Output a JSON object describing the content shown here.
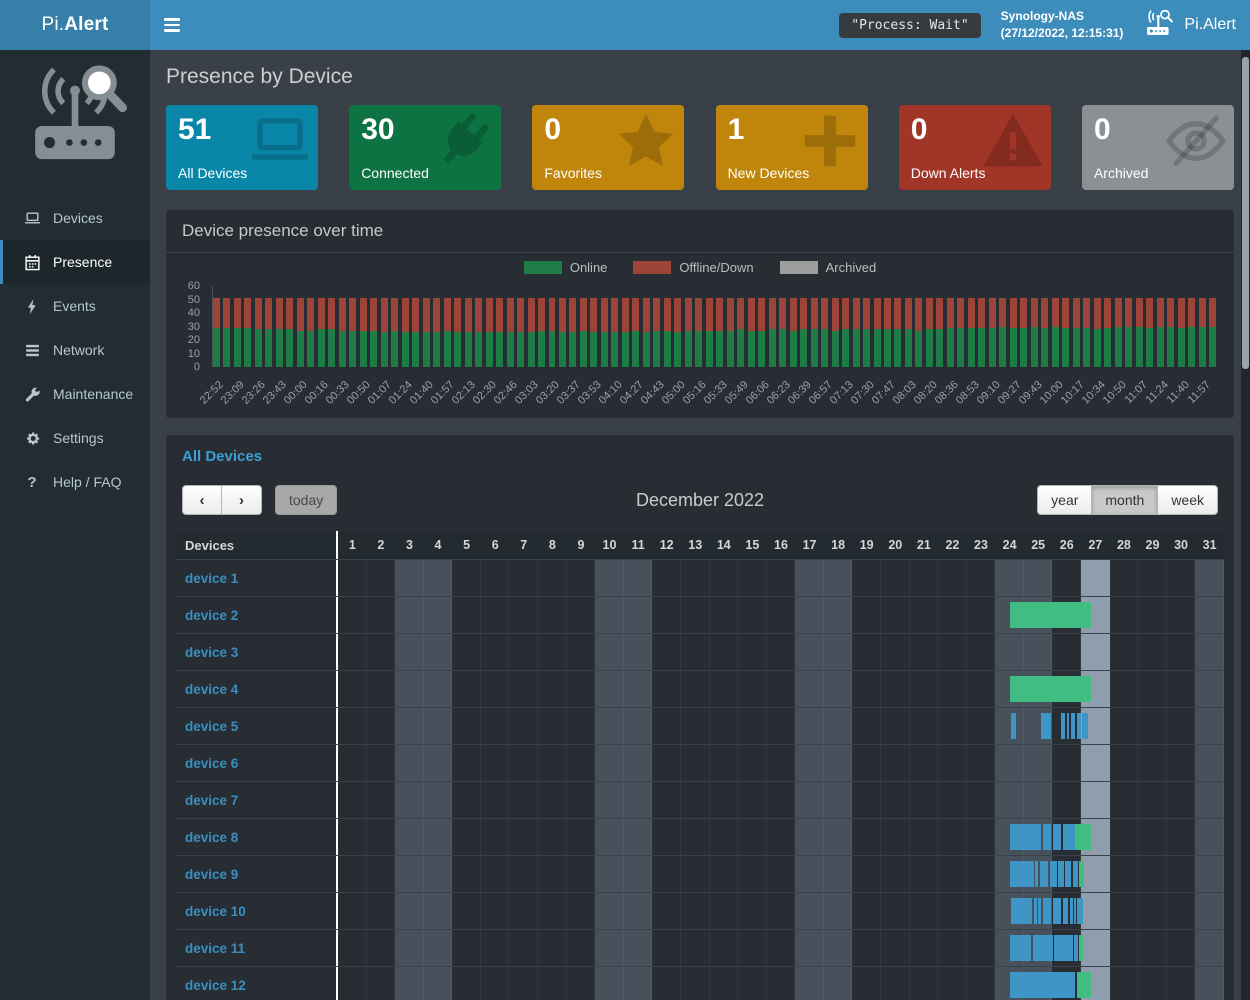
{
  "topbar": {
    "logo_prefix": "Pi.",
    "logo_bold": "Alert",
    "process_badge": "\"Process: Wait\"",
    "host_name": "Synology-NAS",
    "host_time": "(27/12/2022, 12:15:31)",
    "brand_right": "Pi.Alert"
  },
  "sidebar": {
    "items": [
      {
        "id": "devices",
        "label": "Devices",
        "icon": "laptop-icon",
        "active": false
      },
      {
        "id": "presence",
        "label": "Presence",
        "icon": "calendar-icon",
        "active": true
      },
      {
        "id": "events",
        "label": "Events",
        "icon": "bolt-icon",
        "active": false
      },
      {
        "id": "network",
        "label": "Network",
        "icon": "network-icon",
        "active": false
      },
      {
        "id": "maintenance",
        "label": "Maintenance",
        "icon": "wrench-icon",
        "active": false
      },
      {
        "id": "settings",
        "label": "Settings",
        "icon": "gear-icon",
        "active": false
      },
      {
        "id": "help",
        "label": "Help / FAQ",
        "icon": "question-icon",
        "active": false
      }
    ]
  },
  "page": {
    "title": "Presence by Device"
  },
  "stats": [
    {
      "value": "51",
      "label": "All Devices",
      "color": "#0a87a8",
      "icon": "laptop-icon"
    },
    {
      "value": "30",
      "label": "Connected",
      "color": "#0d7342",
      "icon": "plug-icon"
    },
    {
      "value": "0",
      "label": "Favorites",
      "color": "#c0860b",
      "icon": "star-icon"
    },
    {
      "value": "1",
      "label": "New Devices",
      "color": "#c0860b",
      "icon": "plus-icon"
    },
    {
      "value": "0",
      "label": "Down Alerts",
      "color": "#a13527",
      "icon": "warning-icon"
    },
    {
      "value": "0",
      "label": "Archived",
      "color": "#8d9093",
      "icon": "eye-slash-icon"
    }
  ],
  "chart_panel": {
    "title": "Device presence over time"
  },
  "chart_data": {
    "type": "bar",
    "stacked": true,
    "title": "Device presence over time",
    "xlabel": "",
    "ylabel": "",
    "ylim": [
      0,
      60
    ],
    "yticks": [
      60,
      50,
      40,
      30,
      20,
      10,
      0
    ],
    "grid": false,
    "legend_position": "top-center",
    "bars_per_label": 2,
    "x": [
      "22:52",
      "23:09",
      "23:26",
      "23:43",
      "00:00",
      "00:16",
      "00:33",
      "00:50",
      "01:07",
      "01:24",
      "01:40",
      "01:57",
      "02:13",
      "02:30",
      "02:46",
      "03:03",
      "03:20",
      "03:37",
      "03:53",
      "04:10",
      "04:27",
      "04:43",
      "05:00",
      "05:16",
      "05:33",
      "05:49",
      "06:06",
      "06:23",
      "06:39",
      "06:57",
      "07:13",
      "07:30",
      "07:47",
      "08:03",
      "08:20",
      "08:36",
      "08:53",
      "09:10",
      "09:27",
      "09:43",
      "10:00",
      "10:17",
      "10:34",
      "10:50",
      "11:07",
      "11:24",
      "11:40",
      "11:57"
    ],
    "series": [
      {
        "name": "Online",
        "color": "#1e7d46",
        "values": [
          29,
          29,
          29,
          29,
          28,
          28,
          28,
          28,
          27,
          27,
          28,
          28,
          27,
          27,
          27,
          27,
          26,
          27,
          26,
          26,
          26,
          26,
          27,
          26,
          26,
          26,
          26,
          26,
          26,
          26,
          26,
          27,
          27,
          26,
          26,
          27,
          26,
          26,
          26,
          26,
          27,
          26,
          27,
          27,
          26,
          27,
          27,
          27,
          27,
          27,
          28,
          27,
          27,
          28,
          28,
          27,
          28,
          28,
          28,
          27,
          28,
          28,
          28,
          28,
          28,
          28,
          28,
          27,
          28,
          28,
          29,
          29,
          29,
          29,
          29,
          30,
          29,
          29,
          30,
          29,
          30,
          29,
          29,
          29,
          28,
          29,
          30,
          30,
          30,
          29,
          30,
          30,
          29,
          30,
          30,
          30
        ]
      },
      {
        "name": "Offline/Down",
        "color": "#9d4439",
        "values": [
          22,
          22,
          22,
          22,
          23,
          23,
          23,
          23,
          24,
          24,
          23,
          23,
          24,
          24,
          24,
          24,
          25,
          24,
          25,
          25,
          25,
          25,
          24,
          25,
          25,
          25,
          25,
          25,
          25,
          25,
          25,
          24,
          24,
          25,
          25,
          24,
          25,
          25,
          25,
          25,
          24,
          25,
          24,
          24,
          25,
          24,
          24,
          24,
          24,
          24,
          23,
          24,
          24,
          23,
          23,
          24,
          23,
          23,
          23,
          24,
          23,
          23,
          23,
          23,
          23,
          23,
          23,
          24,
          23,
          23,
          22,
          22,
          22,
          22,
          22,
          21,
          22,
          22,
          21,
          22,
          21,
          22,
          22,
          22,
          23,
          22,
          21,
          21,
          21,
          22,
          21,
          21,
          22,
          21,
          21,
          21
        ]
      },
      {
        "name": "Archived",
        "color": "#9e9e9e",
        "values_constant": 0
      }
    ]
  },
  "calendar": {
    "panel_title": "All Devices",
    "toolbar": {
      "prev": "‹",
      "next": "›",
      "today_label": "today",
      "title": "December 2022",
      "views": [
        "year",
        "month",
        "week"
      ],
      "active_view": "month"
    },
    "table": {
      "devices_header": "Devices",
      "days": [
        1,
        2,
        3,
        4,
        5,
        6,
        7,
        8,
        9,
        10,
        11,
        12,
        13,
        14,
        15,
        16,
        17,
        18,
        19,
        20,
        21,
        22,
        23,
        24,
        25,
        26,
        27,
        28,
        29,
        30,
        31
      ],
      "weekend_days": [
        3,
        4,
        10,
        11,
        17,
        18,
        24,
        25,
        31
      ],
      "today_day": 27
    },
    "bar_colors": {
      "presence": "#41bd84",
      "session": "#3e95c6"
    },
    "devices": [
      {
        "name": "device 1",
        "bars": []
      },
      {
        "name": "device 2",
        "bars": [
          {
            "s": 24.5,
            "e": 27.35,
            "t": "online"
          }
        ]
      },
      {
        "name": "device 3",
        "bars": []
      },
      {
        "name": "device 4",
        "bars": [
          {
            "s": 24.5,
            "e": 27.35,
            "t": "online"
          }
        ]
      },
      {
        "name": "device 5",
        "bars": [
          {
            "s": 24.55,
            "e": 24.72,
            "t": "session"
          },
          {
            "s": 25.6,
            "e": 25.95,
            "t": "session"
          },
          {
            "s": 26.3,
            "e": 26.45,
            "t": "session"
          },
          {
            "s": 26.5,
            "e": 26.58,
            "t": "session"
          },
          {
            "s": 26.63,
            "e": 26.8,
            "t": "session"
          },
          {
            "s": 26.85,
            "e": 27.0,
            "t": "session"
          },
          {
            "s": 27.02,
            "e": 27.12,
            "t": "session"
          },
          {
            "s": 27.15,
            "e": 27.25,
            "t": "session"
          }
        ]
      },
      {
        "name": "device 6",
        "bars": []
      },
      {
        "name": "device 7",
        "bars": []
      },
      {
        "name": "device 8",
        "bars": [
          {
            "s": 24.5,
            "e": 25.6,
            "t": "session"
          },
          {
            "s": 25.65,
            "e": 25.95,
            "t": "session"
          },
          {
            "s": 26.0,
            "e": 26.3,
            "t": "session"
          },
          {
            "s": 26.35,
            "e": 26.6,
            "t": "session"
          },
          {
            "s": 26.62,
            "e": 26.78,
            "t": "session"
          },
          {
            "s": 26.8,
            "e": 27.33,
            "t": "online"
          }
        ]
      },
      {
        "name": "device 9",
        "bars": [
          {
            "s": 24.5,
            "e": 25.35,
            "t": "session"
          },
          {
            "s": 25.4,
            "e": 25.5,
            "t": "session"
          },
          {
            "s": 25.55,
            "e": 25.85,
            "t": "session"
          },
          {
            "s": 25.9,
            "e": 26.15,
            "t": "session"
          },
          {
            "s": 26.2,
            "e": 26.4,
            "t": "session"
          },
          {
            "s": 26.45,
            "e": 26.65,
            "t": "session"
          },
          {
            "s": 26.7,
            "e": 26.88,
            "t": "session"
          },
          {
            "s": 26.92,
            "e": 27.1,
            "t": "online"
          }
        ]
      },
      {
        "name": "device 10",
        "bars": [
          {
            "s": 24.55,
            "e": 25.3,
            "t": "session"
          },
          {
            "s": 25.35,
            "e": 25.45,
            "t": "session"
          },
          {
            "s": 25.5,
            "e": 25.6,
            "t": "session"
          },
          {
            "s": 25.65,
            "e": 25.95,
            "t": "session"
          },
          {
            "s": 26.0,
            "e": 26.3,
            "t": "session"
          },
          {
            "s": 26.35,
            "e": 26.55,
            "t": "session"
          },
          {
            "s": 26.6,
            "e": 26.72,
            "t": "session"
          },
          {
            "s": 26.76,
            "e": 26.82,
            "t": "session"
          },
          {
            "s": 26.86,
            "e": 27.05,
            "t": "session"
          }
        ]
      },
      {
        "name": "device 11",
        "bars": [
          {
            "s": 24.5,
            "e": 25.25,
            "t": "session"
          },
          {
            "s": 25.3,
            "e": 26.0,
            "t": "session"
          },
          {
            "s": 26.05,
            "e": 26.7,
            "t": "session"
          },
          {
            "s": 26.75,
            "e": 26.9,
            "t": "session"
          },
          {
            "s": 26.93,
            "e": 27.08,
            "t": "online"
          }
        ]
      },
      {
        "name": "device 12",
        "bars": [
          {
            "s": 24.5,
            "e": 26.8,
            "t": "session"
          },
          {
            "s": 26.85,
            "e": 27.35,
            "t": "online"
          }
        ]
      }
    ]
  }
}
